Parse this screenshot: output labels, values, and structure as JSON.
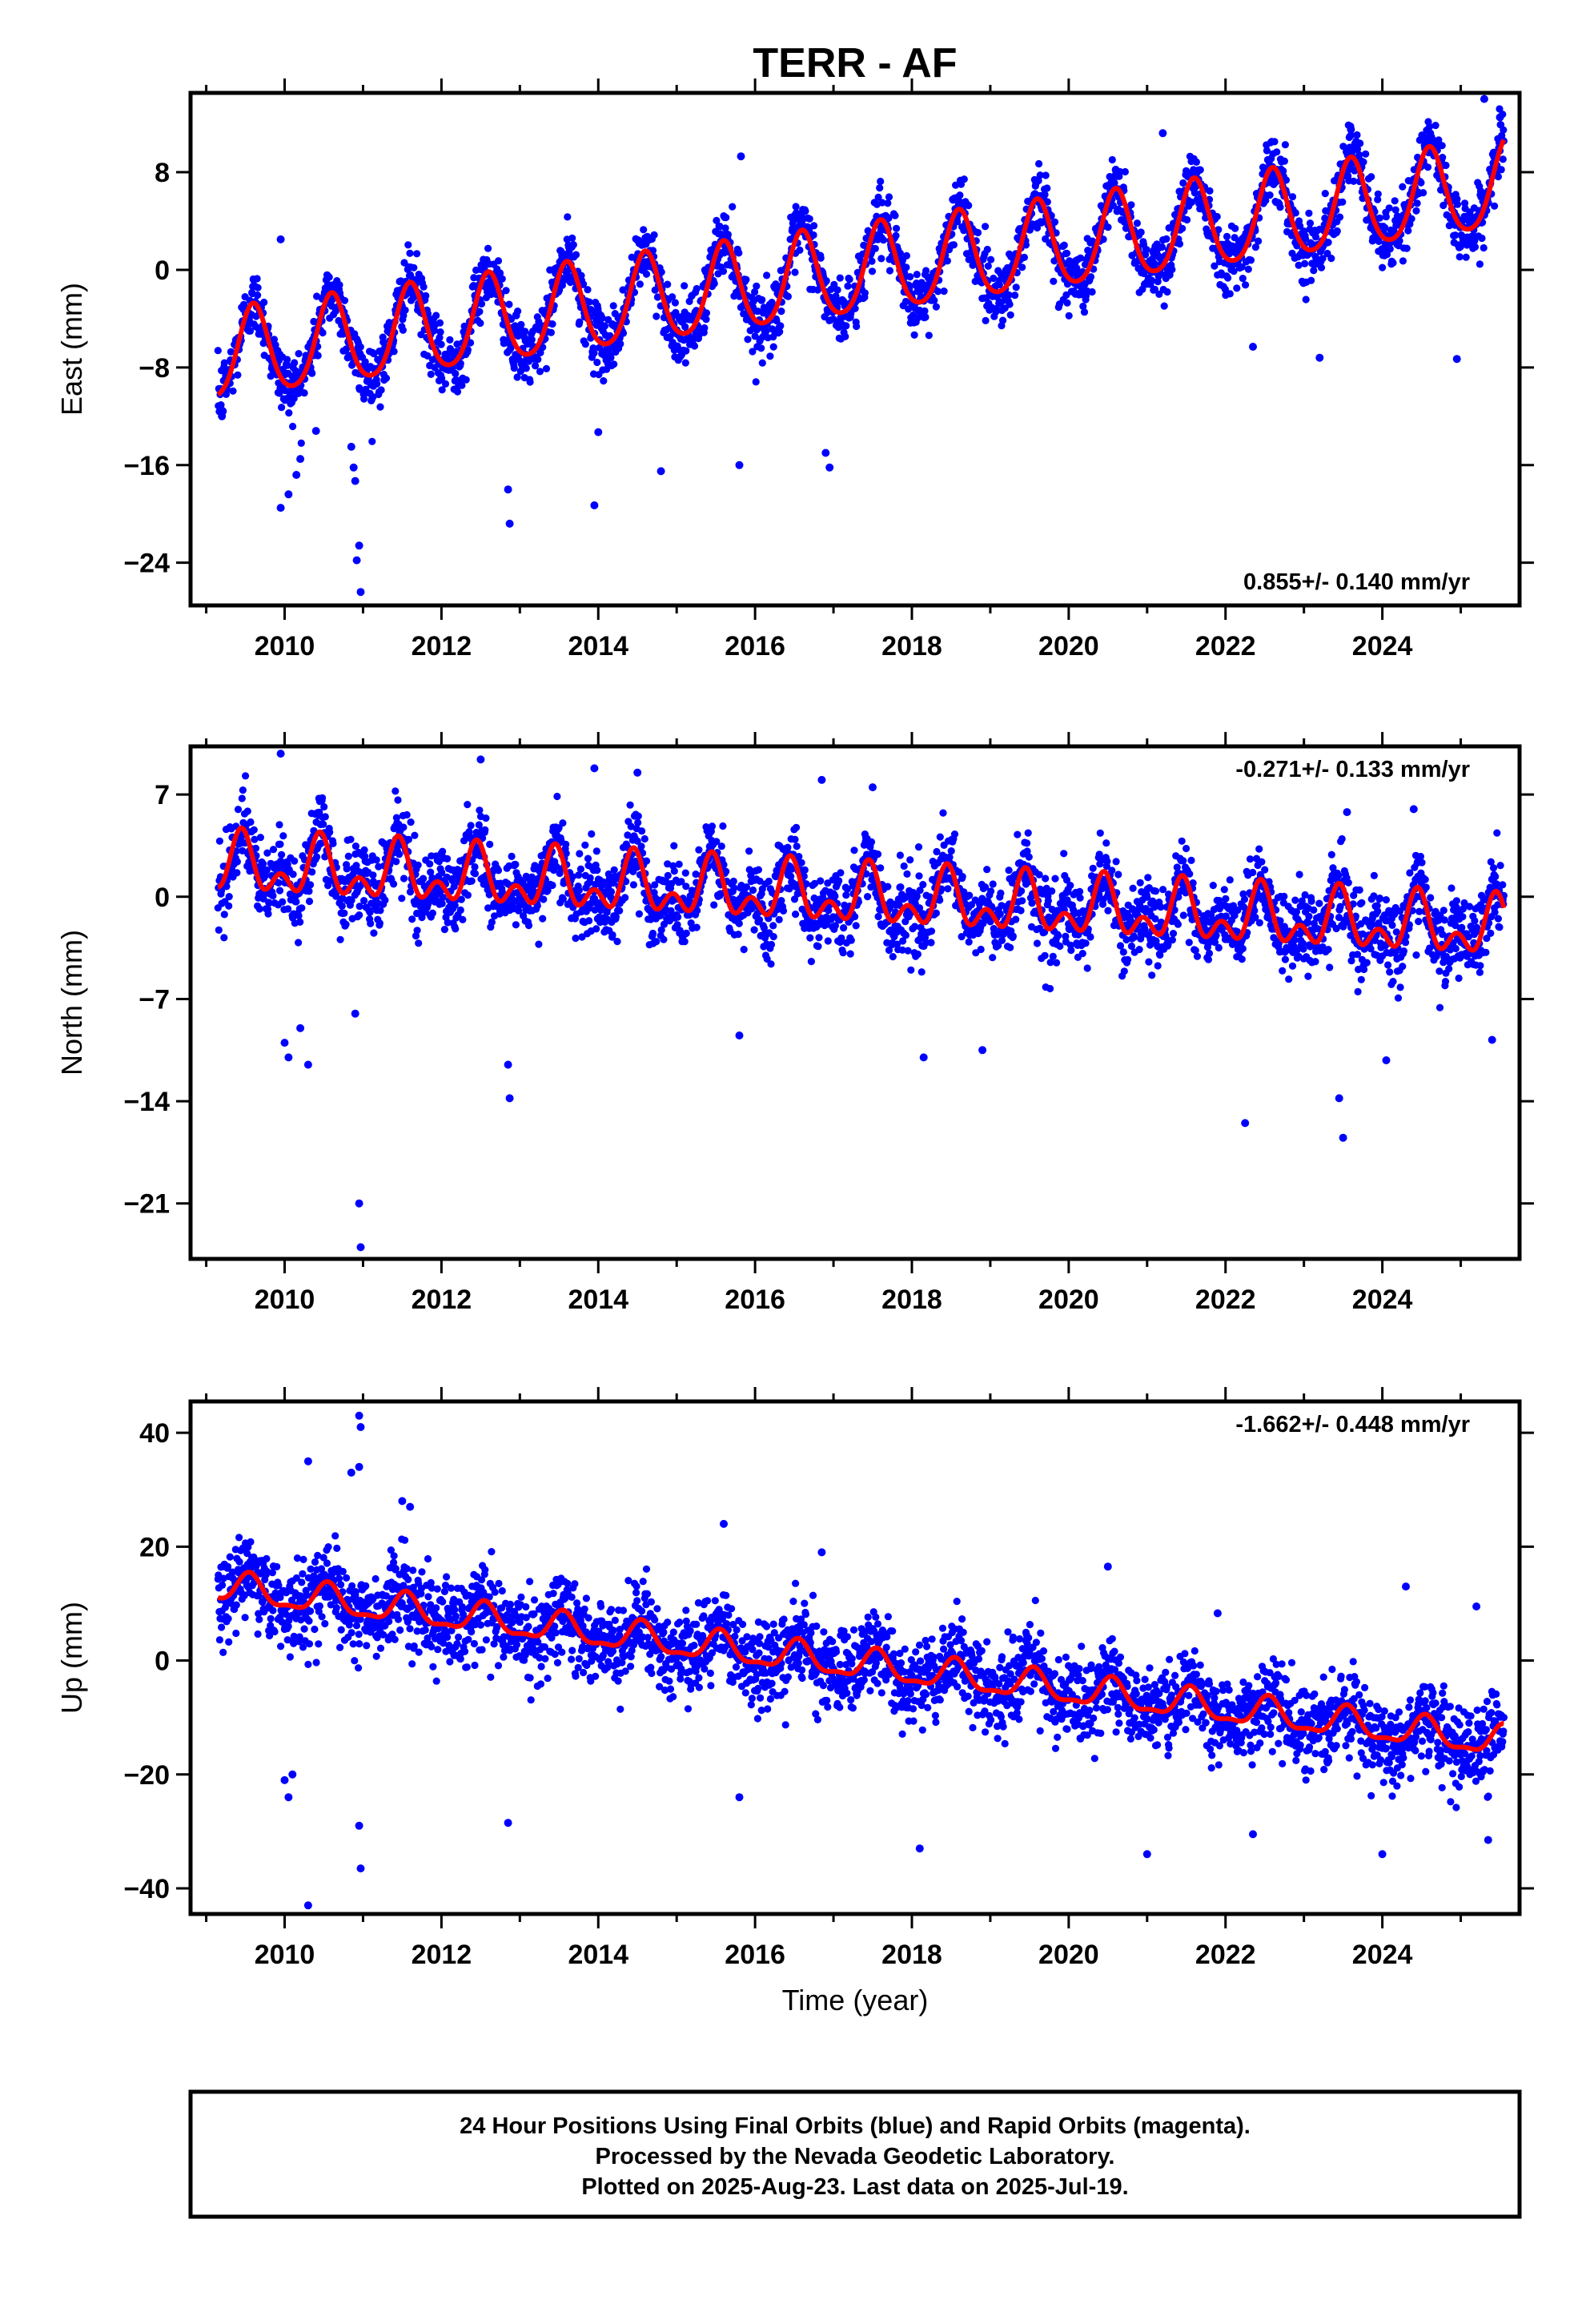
{
  "title": "TERR - AF",
  "xlabel": "Time (year)",
  "footer": {
    "line1": "24 Hour Positions Using Final Orbits (blue) and Rapid Orbits (magenta).",
    "line2": "Processed by the Nevada Geodetic Laboratory.",
    "line3": "Plotted on 2025-Aug-23. Last data on 2025-Jul-19."
  },
  "colors": {
    "points": "#0000ff",
    "model": "#ff0000",
    "frame": "#000000"
  },
  "chart_data": [
    {
      "type": "scatter",
      "component": "east",
      "ylabel": "East (mm)",
      "rate_text": "0.855+/- 0.140 mm/yr",
      "rate_position": "bottom-right",
      "xlim": [
        2008.8,
        2025.75
      ],
      "ylim": [
        -27.5,
        14.5
      ],
      "yticks": [
        8,
        0,
        -8,
        -16,
        -24
      ],
      "ytick_labels": [
        "8",
        "0",
        "−8",
        "−16",
        "−24"
      ],
      "xticks": [
        2010,
        2012,
        2014,
        2016,
        2018,
        2020,
        2022,
        2024
      ],
      "xtick_labels": [
        "2010",
        "2012",
        "2014",
        "2016",
        "2018",
        "2020",
        "2022",
        "2024"
      ],
      "data_start": 2009.15,
      "data_end": 2025.55,
      "model": {
        "offset": -7.2,
        "trend": 0.855,
        "t0": 2009.15,
        "annual_amp": 3.6,
        "annual_peak": 0.6,
        "semiannual_amp": 0.5
      },
      "scatter_sd": 1.3,
      "outliers": [
        {
          "x": 2009.2,
          "y": -12.0
        },
        {
          "x": 2009.95,
          "y": -19.5
        },
        {
          "x": 2010.05,
          "y": -18.4
        },
        {
          "x": 2010.15,
          "y": -16.8
        },
        {
          "x": 2010.2,
          "y": -15.5
        },
        {
          "x": 2010.4,
          "y": -13.2
        },
        {
          "x": 2010.88,
          "y": -16.2
        },
        {
          "x": 2010.9,
          "y": -17.3
        },
        {
          "x": 2010.92,
          "y": -23.8
        },
        {
          "x": 2010.95,
          "y": -22.6
        },
        {
          "x": 2010.97,
          "y": -26.4
        },
        {
          "x": 2010.85,
          "y": -14.5
        },
        {
          "x": 2012.85,
          "y": -18.0
        },
        {
          "x": 2012.87,
          "y": -20.8
        },
        {
          "x": 2013.95,
          "y": -19.3
        },
        {
          "x": 2015.8,
          "y": -16.0
        },
        {
          "x": 2016.9,
          "y": -15.0
        },
        {
          "x": 2016.95,
          "y": -16.2
        },
        {
          "x": 2009.95,
          "y": 2.5
        },
        {
          "x": 2015.82,
          "y": 9.3
        },
        {
          "x": 2020.6,
          "y": 8.2
        },
        {
          "x": 2021.2,
          "y": 11.2
        },
        {
          "x": 2023.6,
          "y": 11.5
        },
        {
          "x": 2025.3,
          "y": 14.0
        },
        {
          "x": 2025.5,
          "y": 12.5
        },
        {
          "x": 2023.2,
          "y": -7.2
        },
        {
          "x": 2024.95,
          "y": -7.3
        },
        {
          "x": 2022.35,
          "y": -6.3
        },
        {
          "x": 2014.0,
          "y": -13.3
        },
        {
          "x": 2014.8,
          "y": -16.5
        }
      ]
    },
    {
      "type": "scatter",
      "component": "north",
      "ylabel": "North (mm)",
      "rate_text": "-0.271+/- 0.133 mm/yr",
      "rate_position": "top-right",
      "xlim": [
        2008.8,
        2025.75
      ],
      "ylim": [
        -24.8,
        10.3
      ],
      "yticks": [
        7,
        0,
        -7,
        -14,
        -21
      ],
      "ytick_labels": [
        "7",
        "0",
        "−7",
        "−14",
        "−21"
      ],
      "xticks": [
        2010,
        2012,
        2014,
        2016,
        2018,
        2020,
        2022,
        2024
      ],
      "xtick_labels": [
        "2010",
        "2012",
        "2014",
        "2016",
        "2018",
        "2020",
        "2022",
        "2024"
      ],
      "data_start": 2009.15,
      "data_end": 2025.55,
      "model": {
        "offset": 2.1,
        "trend": -0.271,
        "t0": 2009.15,
        "annual_amp": 1.5,
        "annual_peak": 0.45,
        "semiannual_amp": 1.2
      },
      "scatter_sd": 1.35,
      "outliers": [
        {
          "x": 2010.0,
          "y": -10.0
        },
        {
          "x": 2010.05,
          "y": -11.0
        },
        {
          "x": 2010.2,
          "y": -9.0
        },
        {
          "x": 2010.3,
          "y": -11.5
        },
        {
          "x": 2010.9,
          "y": -8.0
        },
        {
          "x": 2010.95,
          "y": -21.0
        },
        {
          "x": 2010.97,
          "y": -24.0
        },
        {
          "x": 2012.85,
          "y": -11.5
        },
        {
          "x": 2012.87,
          "y": -13.8
        },
        {
          "x": 2015.8,
          "y": -9.5
        },
        {
          "x": 2018.15,
          "y": -11.0
        },
        {
          "x": 2018.9,
          "y": -10.5
        },
        {
          "x": 2022.25,
          "y": -15.5
        },
        {
          "x": 2023.45,
          "y": -13.8
        },
        {
          "x": 2023.5,
          "y": -16.5
        },
        {
          "x": 2024.05,
          "y": -11.2
        },
        {
          "x": 2025.4,
          "y": -9.8
        },
        {
          "x": 2009.95,
          "y": 9.8
        },
        {
          "x": 2012.5,
          "y": 9.4
        },
        {
          "x": 2013.95,
          "y": 8.8
        },
        {
          "x": 2014.5,
          "y": 8.5
        },
        {
          "x": 2016.85,
          "y": 8.0
        },
        {
          "x": 2017.5,
          "y": 7.5
        },
        {
          "x": 2023.55,
          "y": 5.8
        },
        {
          "x": 2024.4,
          "y": 6.0
        }
      ]
    },
    {
      "type": "scatter",
      "component": "up",
      "ylabel": "Up (mm)",
      "rate_text": "-1.662+/- 0.448 mm/yr",
      "rate_position": "top-right",
      "xlim": [
        2008.8,
        2025.75
      ],
      "ylim": [
        -44.5,
        45.5
      ],
      "yticks": [
        40,
        20,
        0,
        -20,
        -40
      ],
      "ytick_labels": [
        "40",
        "20",
        "0",
        "−20",
        "−40"
      ],
      "xticks": [
        2010,
        2012,
        2014,
        2016,
        2018,
        2020,
        2022,
        2024
      ],
      "xtick_labels": [
        "2010",
        "2012",
        "2014",
        "2016",
        "2018",
        "2020",
        "2022",
        "2024"
      ],
      "data_start": 2009.15,
      "data_end": 2025.55,
      "model": {
        "offset": 12.8,
        "trend": -1.662,
        "t0": 2009.15,
        "annual_amp": 2.5,
        "annual_peak": 0.55,
        "semiannual_amp": 0.9
      },
      "scatter_sd": 3.6,
      "outliers": [
        {
          "x": 2010.3,
          "y": 35.0
        },
        {
          "x": 2010.85,
          "y": 33.0
        },
        {
          "x": 2010.95,
          "y": 43.0
        },
        {
          "x": 2010.97,
          "y": 41.0
        },
        {
          "x": 2010.95,
          "y": 34.0
        },
        {
          "x": 2010.0,
          "y": -21.0
        },
        {
          "x": 2010.05,
          "y": -24.0
        },
        {
          "x": 2010.1,
          "y": -20.0
        },
        {
          "x": 2010.3,
          "y": -43.0
        },
        {
          "x": 2010.95,
          "y": -29.0
        },
        {
          "x": 2010.97,
          "y": -36.5
        },
        {
          "x": 2012.85,
          "y": -28.5
        },
        {
          "x": 2015.8,
          "y": -24.0
        },
        {
          "x": 2018.1,
          "y": -33.0
        },
        {
          "x": 2021.0,
          "y": -34.0
        },
        {
          "x": 2022.35,
          "y": -30.5
        },
        {
          "x": 2024.0,
          "y": -34.0
        },
        {
          "x": 2025.35,
          "y": -31.5
        },
        {
          "x": 2020.5,
          "y": 16.5
        },
        {
          "x": 2021.9,
          "y": 8.3
        },
        {
          "x": 2024.3,
          "y": 13.0
        },
        {
          "x": 2025.2,
          "y": 9.5
        },
        {
          "x": 2015.6,
          "y": 24.0
        },
        {
          "x": 2016.85,
          "y": 19.0
        },
        {
          "x": 2011.5,
          "y": 28.0
        },
        {
          "x": 2011.6,
          "y": 27.0
        }
      ]
    }
  ]
}
